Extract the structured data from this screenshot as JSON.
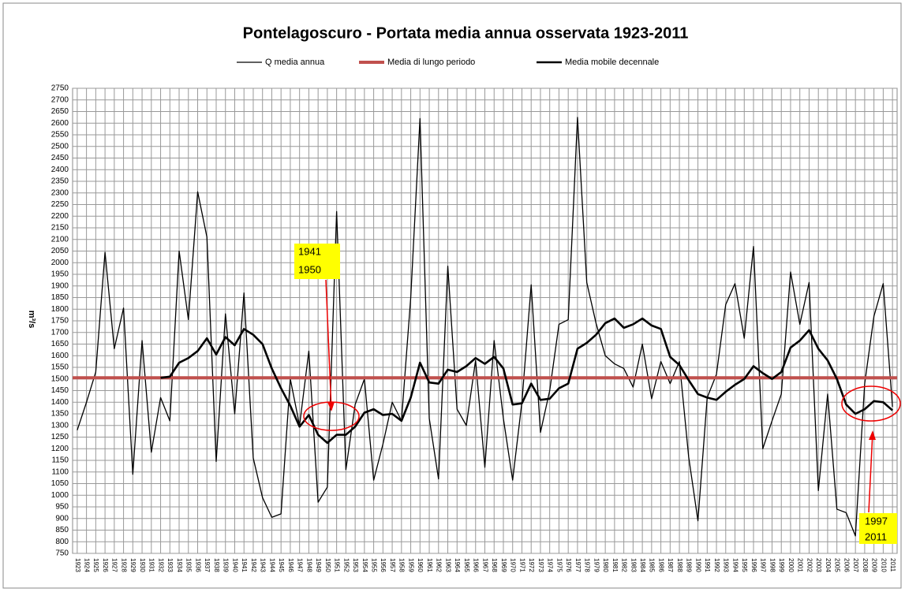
{
  "chart_data": {
    "type": "line",
    "title": "Pontelagoscuro - Portata media annua osservata 1923-2011",
    "y_label": "m³/s",
    "categories": [
      "1923",
      "1924",
      "1925",
      "1926",
      "1927",
      "1928",
      "1929",
      "1930",
      "1931",
      "1932",
      "1933",
      "1934",
      "1935",
      "1936",
      "1937",
      "1938",
      "1939",
      "1940",
      "1941",
      "1942",
      "1943",
      "1944",
      "1945",
      "1946",
      "1947",
      "1948",
      "1949",
      "1950",
      "1951",
      "1952",
      "1953",
      "1954",
      "1955",
      "1956",
      "1957",
      "1958",
      "1959",
      "1960",
      "1961",
      "1962",
      "1963",
      "1964",
      "1965",
      "1966",
      "1967",
      "1968",
      "1969",
      "1970",
      "1971",
      "1972",
      "1973",
      "1974",
      "1975",
      "1976",
      "1977",
      "1978",
      "1979",
      "1980",
      "1981",
      "1982",
      "1983",
      "1984",
      "1985",
      "1986",
      "1987",
      "1988",
      "1989",
      "1990",
      "1991",
      "1992",
      "1993",
      "1994",
      "1995",
      "1996",
      "1997",
      "1998",
      "1999",
      "2000",
      "2001",
      "2002",
      "2003",
      "2004",
      "2005",
      "2006",
      "2007",
      "2008",
      "2009",
      "2010",
      "2011"
    ],
    "series": [
      {
        "name": "Q media annua",
        "color": "#000000",
        "width": 1.3,
        "values": [
          1280,
          1400,
          1530,
          2045,
          1630,
          1805,
          1090,
          1665,
          1185,
          1420,
          1320,
          2050,
          1755,
          2305,
          2110,
          1145,
          1780,
          1350,
          1870,
          1160,
          990,
          905,
          920,
          1500,
          1300,
          1620,
          970,
          1035,
          2220,
          1110,
          1390,
          1500,
          1065,
          1220,
          1400,
          1320,
          1850,
          2620,
          1330,
          1070,
          1985,
          1370,
          1300,
          1580,
          1120,
          1665,
          1330,
          1065,
          1400,
          1905,
          1270,
          1450,
          1735,
          1755,
          2625,
          1915,
          1740,
          1600,
          1565,
          1545,
          1465,
          1650,
          1415,
          1575,
          1480,
          1575,
          1165,
          890,
          1420,
          1520,
          1820,
          1910,
          1675,
          2070,
          1200,
          1320,
          1435,
          1960,
          1735,
          1915,
          1020,
          1435,
          940,
          925,
          825,
          1480,
          1770,
          1910,
          1380
        ]
      },
      {
        "name": "Media di lungo periodo",
        "color": "#c0504d",
        "width": 4,
        "value": 1505
      },
      {
        "name": "Media mobile decennale",
        "color": "#000000",
        "width": 2.6,
        "values": [
          null,
          null,
          null,
          null,
          null,
          null,
          null,
          null,
          null,
          1505,
          1510,
          1570,
          1590,
          1620,
          1675,
          1605,
          1680,
          1645,
          1715,
          1690,
          1650,
          1545,
          1460,
          1385,
          1295,
          1345,
          1260,
          1225,
          1260,
          1260,
          1295,
          1355,
          1370,
          1345,
          1350,
          1320,
          1420,
          1570,
          1485,
          1480,
          1540,
          1530,
          1555,
          1590,
          1565,
          1595,
          1545,
          1390,
          1395,
          1480,
          1410,
          1415,
          1460,
          1480,
          1630,
          1655,
          1690,
          1740,
          1760,
          1720,
          1735,
          1760,
          1730,
          1715,
          1595,
          1560,
          1495,
          1435,
          1420,
          1410,
          1445,
          1475,
          1500,
          1555,
          1525,
          1500,
          1530,
          1635,
          1665,
          1710,
          1630,
          1580,
          1500,
          1390,
          1350,
          1370,
          1405,
          1400,
          1365
        ]
      }
    ],
    "ylim": [
      750,
      2750
    ],
    "yticks": [
      750,
      800,
      850,
      900,
      950,
      1000,
      1050,
      1100,
      1150,
      1200,
      1250,
      1300,
      1350,
      1400,
      1450,
      1500,
      1550,
      1600,
      1650,
      1700,
      1750,
      1800,
      1850,
      1900,
      1950,
      2000,
      2050,
      2100,
      2150,
      2200,
      2250,
      2300,
      2350,
      2400,
      2450,
      2500,
      2550,
      2600,
      2650,
      2700,
      2750
    ],
    "grid": true,
    "legend": "top",
    "annotations": [
      {
        "lines": [
          "1941",
          "1950"
        ]
      },
      {
        "lines": [
          "1997",
          "2011"
        ]
      }
    ]
  }
}
